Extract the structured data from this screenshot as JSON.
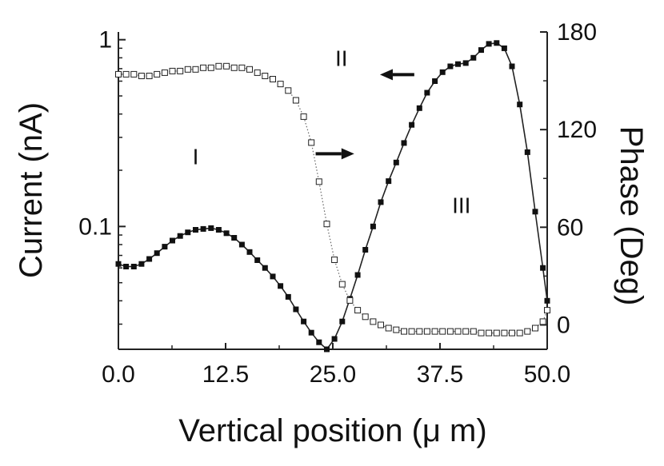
{
  "chart_data": {
    "type": "line",
    "title": "",
    "xlabel": "Vertical position (μ m)",
    "ylabel_left": "Current (nA)",
    "ylabel_right": "Phase (Deg)",
    "xlim": [
      0,
      50
    ],
    "ylim_left": [
      0.022,
      1.1
    ],
    "yscale_left": "log",
    "ylim_right": [
      -15,
      180
    ],
    "x_ticks": [
      "0.0",
      "12.5",
      "25.0",
      "37.5",
      "50.0"
    ],
    "x_tick_values": [
      0,
      12.5,
      25,
      37.5,
      50
    ],
    "y_left_ticks": [
      "1",
      "0.1"
    ],
    "y_left_tick_values": [
      1,
      0.1
    ],
    "y_right_ticks": [
      "180",
      "120",
      "60",
      "0"
    ],
    "y_right_tick_values": [
      180,
      120,
      60,
      0
    ],
    "annotations": [
      {
        "text": "I",
        "x": 9.0,
        "axis": "left",
        "y": 0.238
      },
      {
        "text": "II",
        "x": 26.0,
        "axis": "left",
        "y": 0.8
      },
      {
        "text": "III",
        "x": 40.0,
        "axis": "left",
        "y": 0.13
      }
    ],
    "arrows": [
      {
        "name": "arrow-left-to-current",
        "from_x": 34.5,
        "to_x": 30.5,
        "axis": "left",
        "y": 0.65,
        "direction": "left"
      },
      {
        "name": "arrow-right-to-phase",
        "from_x": 23.0,
        "to_x": 27.5,
        "axis": "left",
        "y": 0.245,
        "direction": "right"
      }
    ],
    "series": [
      {
        "name": "Current",
        "axis": "left",
        "marker": "filled-square",
        "line": "solid",
        "x": [
          0,
          0.9,
          1.8,
          2.7,
          3.6,
          4.5,
          5.4,
          6.3,
          7.2,
          8.1,
          9.0,
          9.9,
          10.8,
          11.7,
          12.6,
          13.5,
          14.4,
          15.3,
          16.2,
          17.1,
          18.0,
          18.9,
          19.8,
          20.7,
          21.6,
          22.5,
          23.4,
          24.3,
          25.2,
          26.1,
          27.0,
          27.9,
          28.8,
          29.7,
          30.6,
          31.5,
          32.4,
          33.3,
          34.2,
          35.1,
          36.0,
          36.9,
          37.8,
          38.7,
          39.6,
          40.5,
          41.4,
          42.3,
          43.2,
          44.1,
          45.0,
          45.9,
          46.8,
          47.7,
          48.6,
          49.5,
          50.0
        ],
        "y": [
          0.063,
          0.061,
          0.061,
          0.063,
          0.067,
          0.072,
          0.078,
          0.084,
          0.089,
          0.093,
          0.096,
          0.097,
          0.098,
          0.096,
          0.092,
          0.087,
          0.08,
          0.073,
          0.066,
          0.06,
          0.054,
          0.048,
          0.042,
          0.036,
          0.031,
          0.027,
          0.024,
          0.022,
          0.025,
          0.031,
          0.041,
          0.055,
          0.075,
          0.1,
          0.135,
          0.175,
          0.22,
          0.28,
          0.35,
          0.43,
          0.52,
          0.6,
          0.67,
          0.72,
          0.74,
          0.75,
          0.8,
          0.88,
          0.95,
          0.96,
          0.9,
          0.72,
          0.45,
          0.25,
          0.12,
          0.06,
          0.04
        ]
      },
      {
        "name": "Phase",
        "axis": "right",
        "marker": "open-square",
        "line": "dotted",
        "x": [
          0,
          0.9,
          1.8,
          2.7,
          3.6,
          4.5,
          5.4,
          6.3,
          7.2,
          8.1,
          9.0,
          9.9,
          10.8,
          11.7,
          12.6,
          13.5,
          14.4,
          15.3,
          16.2,
          17.1,
          18.0,
          18.9,
          19.8,
          20.7,
          21.6,
          22.5,
          23.4,
          24.3,
          25.2,
          26.1,
          27.0,
          27.9,
          28.8,
          29.7,
          30.6,
          31.5,
          32.4,
          33.3,
          34.2,
          35.1,
          36.0,
          36.9,
          37.8,
          38.7,
          39.6,
          40.5,
          41.4,
          42.3,
          43.2,
          44.1,
          45.0,
          45.9,
          46.8,
          47.7,
          48.6,
          49.5,
          50.0
        ],
        "y": [
          154,
          154,
          154,
          153,
          153,
          154,
          155,
          156,
          156,
          157,
          157,
          158,
          158,
          159,
          159,
          158,
          158,
          157,
          155,
          153,
          151,
          148,
          144,
          138,
          128,
          112,
          88,
          62,
          40,
          25,
          15,
          9,
          5,
          2,
          0,
          -2,
          -3,
          -4,
          -4,
          -4,
          -4,
          -4,
          -4,
          -4,
          -4,
          -4,
          -4,
          -5,
          -5,
          -5,
          -5,
          -5,
          -5,
          -4,
          -2,
          2,
          9
        ]
      }
    ]
  }
}
